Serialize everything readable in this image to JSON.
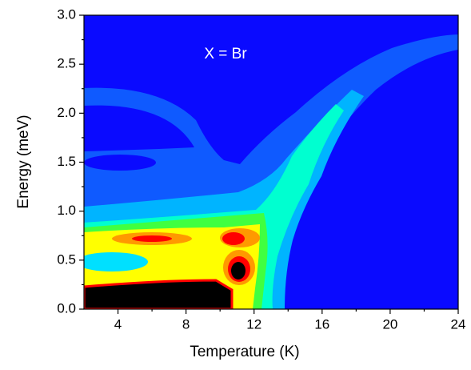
{
  "chart_data": {
    "type": "contour",
    "xlabel": "Temperature (K)",
    "ylabel": "Energy (meV)",
    "annotation": "X = Br",
    "xlim": [
      2,
      24
    ],
    "ylim": [
      0,
      3
    ],
    "xticks": [
      4,
      8,
      12,
      16,
      20,
      24
    ],
    "yticks": [
      {
        "value": 0,
        "label": "0.0"
      },
      {
        "value": 0.5,
        "label": "0.5"
      },
      {
        "value": 1,
        "label": "1.0"
      },
      {
        "value": 1.5,
        "label": "1.5"
      },
      {
        "value": 2,
        "label": "2.0"
      },
      {
        "value": 2.5,
        "label": "2.5"
      },
      {
        "value": 3,
        "label": "3.0"
      }
    ]
  }
}
